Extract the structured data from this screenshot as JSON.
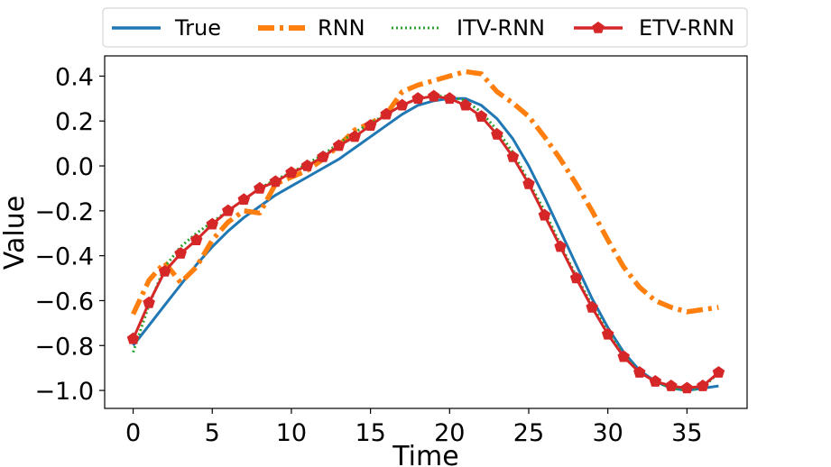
{
  "chart_data": {
    "type": "line",
    "xlabel": "Time",
    "ylabel": "Value",
    "xlim": [
      -1.8,
      38.8
    ],
    "ylim": [
      -1.08,
      0.49
    ],
    "xticks": [
      0,
      5,
      10,
      15,
      20,
      25,
      30,
      35
    ],
    "yticks": [
      -1.0,
      -0.8,
      -0.6,
      -0.4,
      -0.2,
      0.0,
      0.2,
      0.4
    ],
    "xtick_labels": [
      "0",
      "5",
      "10",
      "15",
      "20",
      "25",
      "30",
      "35"
    ],
    "ytick_labels": [
      "−1.0",
      "−0.8",
      "−0.6",
      "−0.4",
      "−0.2",
      "0.0",
      "0.2",
      "0.4"
    ],
    "grid": false,
    "legend": {
      "placement": "top-center",
      "entries": [
        "True",
        "RNN",
        "ITV-RNN",
        "ETV-RNN"
      ]
    },
    "series": [
      {
        "name": "True",
        "color": "#1f77b4",
        "style": "solid",
        "x": [
          0,
          1,
          2,
          3,
          4,
          5,
          6,
          7,
          8,
          9,
          10,
          11,
          12,
          13,
          14,
          15,
          16,
          17,
          18,
          19,
          20,
          21,
          22,
          23,
          24,
          25,
          26,
          27,
          28,
          29,
          30,
          31,
          32,
          33,
          34,
          35,
          36,
          37
        ],
        "values": [
          -0.8,
          -0.71,
          -0.62,
          -0.53,
          -0.44,
          -0.36,
          -0.29,
          -0.23,
          -0.18,
          -0.13,
          -0.09,
          -0.05,
          -0.01,
          0.03,
          0.08,
          0.13,
          0.18,
          0.23,
          0.27,
          0.29,
          0.3,
          0.3,
          0.27,
          0.21,
          0.12,
          0.0,
          -0.14,
          -0.29,
          -0.44,
          -0.59,
          -0.72,
          -0.83,
          -0.91,
          -0.96,
          -0.99,
          -1.0,
          -0.99,
          -0.98
        ]
      },
      {
        "name": "RNN",
        "color": "#ff7f0e",
        "style": "dashdot",
        "x": [
          0,
          1,
          2,
          3,
          4,
          5,
          6,
          7,
          8,
          9,
          10,
          11,
          12,
          13,
          14,
          15,
          16,
          17,
          18,
          19,
          20,
          21,
          22,
          23,
          24,
          25,
          26,
          27,
          28,
          29,
          30,
          31,
          32,
          33,
          34,
          35,
          36,
          37
        ],
        "values": [
          -0.66,
          -0.51,
          -0.43,
          -0.52,
          -0.45,
          -0.33,
          -0.25,
          -0.2,
          -0.21,
          -0.08,
          -0.05,
          -0.02,
          0.03,
          0.09,
          0.16,
          0.19,
          0.23,
          0.33,
          0.36,
          0.38,
          0.4,
          0.42,
          0.41,
          0.33,
          0.28,
          0.22,
          0.13,
          0.03,
          -0.08,
          -0.2,
          -0.33,
          -0.45,
          -0.54,
          -0.6,
          -0.63,
          -0.65,
          -0.64,
          -0.63
        ]
      },
      {
        "name": "ITV-RNN",
        "color": "#2ca02c",
        "style": "dotted",
        "x": [
          0,
          1,
          2,
          3,
          4,
          5,
          6,
          7,
          8,
          9,
          10,
          11,
          12,
          13,
          14,
          15,
          16,
          17,
          18,
          19,
          20,
          21,
          22,
          23,
          24,
          25,
          26,
          27,
          28,
          29,
          30,
          31,
          32,
          33,
          34,
          35,
          36,
          37
        ],
        "values": [
          -0.83,
          -0.62,
          -0.45,
          -0.36,
          -0.3,
          -0.25,
          -0.2,
          -0.15,
          -0.1,
          -0.06,
          -0.03,
          0.01,
          0.05,
          0.1,
          0.15,
          0.19,
          0.23,
          0.27,
          0.3,
          0.31,
          0.31,
          0.29,
          0.24,
          0.16,
          0.06,
          -0.07,
          -0.2,
          -0.35,
          -0.49,
          -0.62,
          -0.74,
          -0.84,
          -0.92,
          -0.96,
          -0.99,
          -1.0,
          -0.99,
          -0.92
        ]
      },
      {
        "name": "ETV-RNN",
        "color": "#d62728",
        "style": "solid-pentagon",
        "x": [
          0,
          1,
          2,
          3,
          4,
          5,
          6,
          7,
          8,
          9,
          10,
          11,
          12,
          13,
          14,
          15,
          16,
          17,
          18,
          19,
          20,
          21,
          22,
          23,
          24,
          25,
          26,
          27,
          28,
          29,
          30,
          31,
          32,
          33,
          34,
          35,
          36,
          37
        ],
        "values": [
          -0.77,
          -0.61,
          -0.47,
          -0.39,
          -0.33,
          -0.26,
          -0.2,
          -0.15,
          -0.1,
          -0.07,
          -0.03,
          0.0,
          0.04,
          0.09,
          0.13,
          0.18,
          0.23,
          0.27,
          0.3,
          0.31,
          0.3,
          0.27,
          0.22,
          0.14,
          0.04,
          -0.08,
          -0.22,
          -0.36,
          -0.5,
          -0.63,
          -0.75,
          -0.85,
          -0.92,
          -0.96,
          -0.98,
          -0.99,
          -0.98,
          -0.92
        ]
      }
    ]
  }
}
